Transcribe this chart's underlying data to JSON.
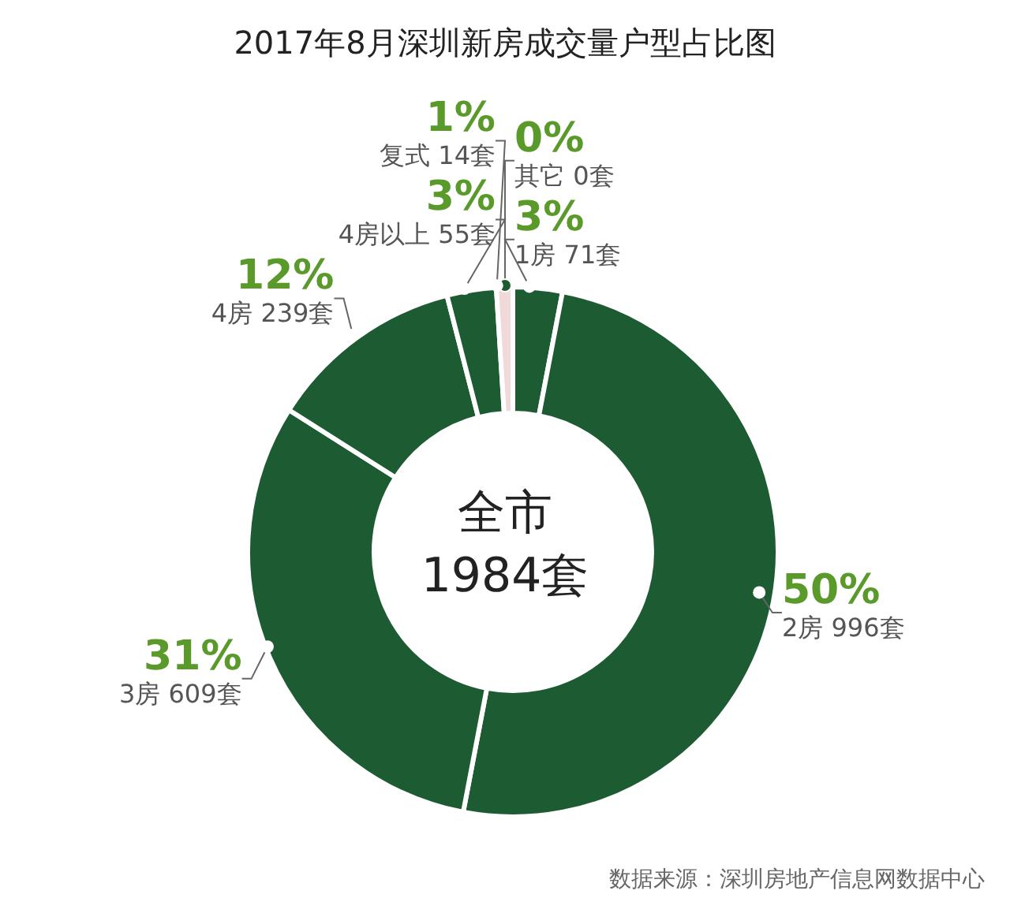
{
  "chart_data": {
    "type": "donut",
    "title": "2017年8月深圳新房成交量户型占比图",
    "categories": [
      "其它 0套",
      "1房 71套",
      "2房 996套",
      "3房 609套",
      "4房 239套",
      "4房以上 55套",
      "复式 14套"
    ],
    "values": [
      0,
      3,
      50,
      31,
      12,
      3,
      1
    ],
    "value_labels": [
      "0%",
      "3%",
      "50%",
      "31%",
      "12%",
      "3%",
      "1%"
    ],
    "colors": [
      "#1d5c33",
      "#1d5c33",
      "#1d5c33",
      "#1d5c33",
      "#1d5c33",
      "#1d5c33",
      "#f2d9d9"
    ],
    "annotations": [
      "全市 1984套",
      "数据来源：深圳房地产信息网数据中心"
    ],
    "legend": false
  }
}
